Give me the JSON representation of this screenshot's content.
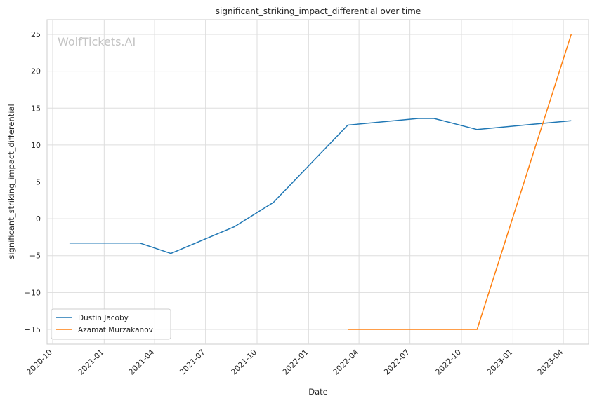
{
  "chart_data": {
    "type": "line",
    "title": "significant_striking_impact_differential over time",
    "xlabel": "Date",
    "ylabel": "significant_striking_impact_differential",
    "watermark": "WolfTickets.AI",
    "x_ticks": [
      "2020-10",
      "2021-01",
      "2021-04",
      "2021-07",
      "2021-10",
      "2022-01",
      "2022-04",
      "2022-07",
      "2022-10",
      "2023-01",
      "2023-04"
    ],
    "y_ticks": [
      25,
      20,
      15,
      10,
      5,
      0,
      -5,
      -10,
      -15
    ],
    "y_tick_labels": [
      "25",
      "20",
      "15",
      "10",
      "5",
      "0",
      "−5",
      "−10",
      "−15"
    ],
    "xlim": [
      "2020-09-21",
      "2023-05-16"
    ],
    "ylim": [
      -17.0,
      27.0
    ],
    "grid": true,
    "legend_position": "lower-left",
    "series": [
      {
        "name": "Dustin Jacoby",
        "color": "#1f77b4",
        "points": [
          {
            "x": "2020-10-31",
            "y": -3.3
          },
          {
            "x": "2021-03-06",
            "y": -3.3
          },
          {
            "x": "2021-04-30",
            "y": -4.7
          },
          {
            "x": "2021-08-21",
            "y": -1.1
          },
          {
            "x": "2021-10-30",
            "y": 2.2
          },
          {
            "x": "2022-03-12",
            "y": 12.7
          },
          {
            "x": "2022-07-16",
            "y": 13.6
          },
          {
            "x": "2022-08-13",
            "y": 13.6
          },
          {
            "x": "2022-10-29",
            "y": 12.1
          },
          {
            "x": "2023-04-15",
            "y": 13.3
          }
        ]
      },
      {
        "name": "Azamat Murzakanov",
        "color": "#ff7f0e",
        "points": [
          {
            "x": "2022-03-12",
            "y": -15.0
          },
          {
            "x": "2022-07-16",
            "y": -15.0
          },
          {
            "x": "2022-10-29",
            "y": -15.0
          },
          {
            "x": "2023-04-15",
            "y": 25.0
          }
        ]
      }
    ]
  }
}
